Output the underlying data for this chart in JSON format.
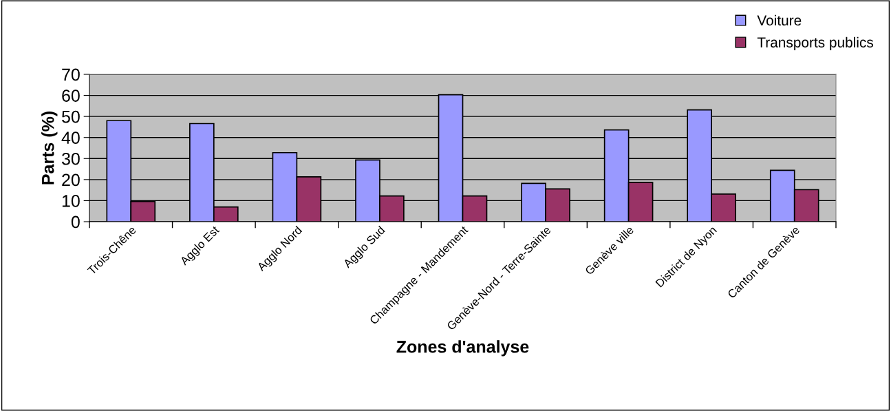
{
  "chart_data": {
    "type": "bar",
    "categories": [
      "Trois-Chêne",
      "Agglo Est",
      "Agglo Nord",
      "Agglo Sud",
      "Champagne - Mandement",
      "Genève-Nord - Terre-Sainte",
      "Genève ville",
      "District de Nyon",
      "Canton de Genève"
    ],
    "series": [
      {
        "name": "Voiture",
        "color": "#9999ff",
        "values": [
          48,
          46.6,
          32.8,
          29.3,
          60.3,
          18.2,
          43.6,
          53.1,
          24.4
        ]
      },
      {
        "name": "Transports publics",
        "color": "#993366",
        "values": [
          9.6,
          7.0,
          21.3,
          12.2,
          12.2,
          15.6,
          18.7,
          13.1,
          15.2
        ]
      }
    ],
    "xlabel": "Zones d'analyse",
    "ylabel": "Parts (%)",
    "ylim": [
      0,
      70
    ],
    "yticks": [
      0,
      10,
      20,
      30,
      40,
      50,
      60,
      70
    ],
    "grid": "y",
    "legend": "top right"
  }
}
